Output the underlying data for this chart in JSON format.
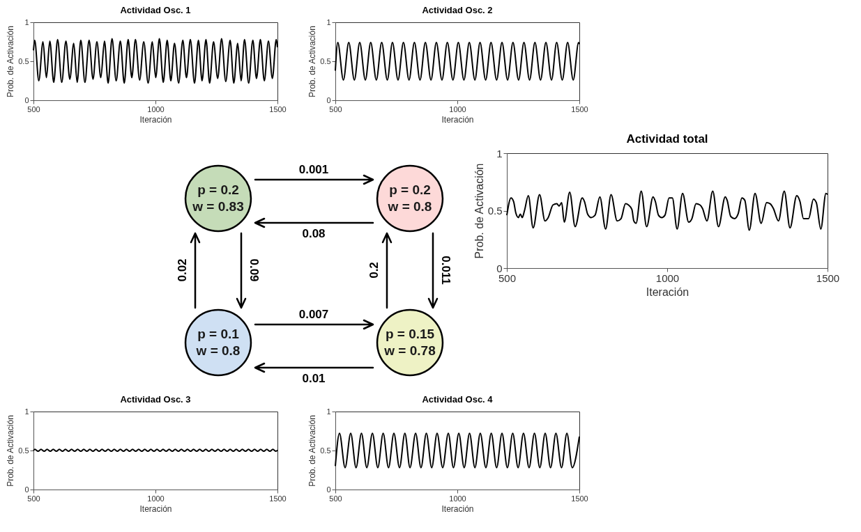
{
  "chart_data": [
    {
      "type": "line",
      "title": "Actividad Osc. 1",
      "xlabel": "Iteración",
      "ylabel": "Prob. de Activación",
      "xlim": [
        500,
        1500
      ],
      "ylim": [
        0,
        1
      ],
      "xticks": [
        500,
        1000,
        1500
      ],
      "yticks": [
        0,
        0.5,
        1
      ],
      "grid": false,
      "x": [
        500,
        505,
        522,
        539,
        553,
        567,
        583,
        599,
        616,
        633,
        649,
        665,
        679,
        694,
        711,
        728,
        744,
        760,
        776,
        791,
        806,
        822,
        839,
        856,
        872,
        888,
        903,
        918,
        935,
        952,
        970,
        987,
        1001,
        1016,
        1032,
        1048,
        1063,
        1078,
        1095,
        1112,
        1127,
        1143,
        1160,
        1176,
        1191,
        1207,
        1222,
        1238,
        1255,
        1271,
        1288,
        1306,
        1321,
        1337,
        1351,
        1365,
        1382,
        1399,
        1414,
        1430,
        1446,
        1463,
        1479,
        1495,
        1500
      ],
      "series": [
        {
          "color": "#000000",
          "values": [
            0.64,
            0.77,
            0.25,
            0.75,
            0.29,
            0.76,
            0.23,
            0.78,
            0.23,
            0.76,
            0.27,
            0.73,
            0.23,
            0.77,
            0.23,
            0.77,
            0.27,
            0.75,
            0.29,
            0.76,
            0.22,
            0.79,
            0.25,
            0.76,
            0.22,
            0.78,
            0.29,
            0.78,
            0.26,
            0.75,
            0.22,
            0.75,
            0.29,
            0.79,
            0.23,
            0.77,
            0.25,
            0.73,
            0.22,
            0.77,
            0.29,
            0.78,
            0.22,
            0.77,
            0.25,
            0.78,
            0.22,
            0.75,
            0.28,
            0.79,
            0.24,
            0.77,
            0.22,
            0.73,
            0.25,
            0.78,
            0.22,
            0.77,
            0.28,
            0.78,
            0.25,
            0.76,
            0.28,
            0.78,
            0.68
          ]
        }
      ]
    },
    {
      "type": "line",
      "title": "Actividad Osc. 2",
      "xlabel": "Iteración",
      "ylabel": "Prob. de Activación",
      "xlim": [
        500,
        1500
      ],
      "ylim": [
        0,
        1
      ],
      "xticks": [
        500,
        1000,
        1500
      ],
      "yticks": [
        0,
        0.5,
        1
      ],
      "grid": false,
      "x": [
        500,
        510,
        533,
        555,
        578,
        600,
        623,
        645,
        668,
        690,
        713,
        734,
        757,
        779,
        802,
        824,
        847,
        869,
        892,
        914,
        937,
        959,
        982,
        1004,
        1027,
        1049,
        1072,
        1093,
        1116,
        1138,
        1161,
        1183,
        1206,
        1228,
        1251,
        1273,
        1296,
        1318,
        1341,
        1363,
        1386,
        1407,
        1430,
        1452,
        1475,
        1497,
        1500
      ],
      "series": [
        {
          "color": "#000000",
          "values": [
            0.38,
            0.74,
            0.26,
            0.74,
            0.26,
            0.74,
            0.26,
            0.74,
            0.26,
            0.74,
            0.26,
            0.74,
            0.26,
            0.74,
            0.26,
            0.74,
            0.26,
            0.74,
            0.26,
            0.74,
            0.26,
            0.74,
            0.26,
            0.74,
            0.26,
            0.74,
            0.26,
            0.74,
            0.26,
            0.74,
            0.26,
            0.74,
            0.26,
            0.74,
            0.26,
            0.74,
            0.26,
            0.74,
            0.26,
            0.74,
            0.26,
            0.74,
            0.26,
            0.74,
            0.26,
            0.74,
            0.72
          ]
        }
      ]
    },
    {
      "type": "other",
      "categories": [
        "p = 0.2\nw = 0.83",
        "p = 0.2\nw = 0.8",
        "p = 0.1\nw = 0.8",
        "p = 0.15\nw = 0.78"
      ],
      "colors": [
        "#c5dcb8",
        "#fdd9d8",
        "#cfe0f3",
        "#eef2c5"
      ],
      "annotations": [
        "0.001",
        "0.08",
        "0.02",
        "0.09",
        "0.2",
        "0.011",
        "0.007",
        "0.01"
      ]
    },
    {
      "type": "line",
      "title": "Actividad total",
      "xlabel": "Iteración",
      "ylabel": "Prob. de Activación",
      "xlim": [
        500,
        1500
      ],
      "ylim": [
        0,
        1
      ],
      "xticks": [
        500,
        1000,
        1500
      ],
      "yticks": [
        0,
        0.5,
        1
      ],
      "grid": false,
      "x": [
        500,
        513,
        521,
        528,
        536,
        542,
        548,
        555,
        567,
        582,
        602,
        619,
        629,
        644,
        656,
        663,
        671,
        679,
        696,
        713,
        735,
        742,
        752,
        763,
        775,
        790,
        808,
        825,
        844,
        856,
        870,
        879,
        890,
        896,
        903,
        919,
        936,
        956,
        963,
        973,
        983,
        993,
        1006,
        1016,
        1031,
        1048,
        1067,
        1077,
        1090,
        1102,
        1110,
        1124,
        1142,
        1160,
        1181,
        1187,
        1198,
        1210,
        1221,
        1233,
        1242,
        1256,
        1274,
        1293,
        1310,
        1321,
        1331,
        1347,
        1365,
        1383,
        1404,
        1414,
        1425,
        1441,
        1456,
        1465,
        1479,
        1495,
        1500
      ],
      "series": [
        {
          "color": "#000000",
          "values": [
            0.46,
            0.61,
            0.58,
            0.48,
            0.44,
            0.47,
            0.44,
            0.5,
            0.63,
            0.35,
            0.64,
            0.41,
            0.44,
            0.55,
            0.56,
            0.54,
            0.57,
            0.4,
            0.66,
            0.36,
            0.61,
            0.58,
            0.47,
            0.44,
            0.46,
            0.62,
            0.34,
            0.64,
            0.41,
            0.43,
            0.56,
            0.55,
            0.51,
            0.41,
            0.39,
            0.67,
            0.36,
            0.62,
            0.58,
            0.46,
            0.44,
            0.46,
            0.61,
            0.61,
            0.34,
            0.65,
            0.4,
            0.43,
            0.56,
            0.55,
            0.52,
            0.41,
            0.67,
            0.36,
            0.62,
            0.59,
            0.45,
            0.43,
            0.47,
            0.61,
            0.59,
            0.33,
            0.65,
            0.39,
            0.57,
            0.56,
            0.52,
            0.41,
            0.67,
            0.35,
            0.63,
            0.58,
            0.43,
            0.43,
            0.6,
            0.57,
            0.34,
            0.65,
            0.64
          ]
        }
      ]
    },
    {
      "type": "line",
      "title": "Actividad Osc. 3",
      "xlabel": "Iteración",
      "ylabel": "Prob. de Activación",
      "xlim": [
        500,
        1500
      ],
      "ylim": [
        0,
        1
      ],
      "xticks": [
        500,
        1000,
        1500
      ],
      "yticks": [
        0,
        0.5,
        1
      ],
      "grid": false,
      "x": [
        500,
        506,
        519,
        531,
        544,
        556,
        569,
        581,
        594,
        606,
        619,
        631,
        644,
        656,
        669,
        681,
        694,
        706,
        719,
        731,
        744,
        756,
        769,
        781,
        794,
        806,
        819,
        831,
        844,
        856,
        869,
        881,
        894,
        906,
        919,
        931,
        944,
        956,
        969,
        981,
        994,
        1006,
        1019,
        1031,
        1044,
        1056,
        1069,
        1081,
        1094,
        1106,
        1119,
        1131,
        1144,
        1156,
        1169,
        1181,
        1194,
        1206,
        1219,
        1231,
        1244,
        1256,
        1269,
        1281,
        1294,
        1306,
        1319,
        1331,
        1344,
        1356,
        1369,
        1381,
        1394,
        1406,
        1419,
        1431,
        1444,
        1456,
        1469,
        1481,
        1494,
        1500
      ],
      "series": [
        {
          "color": "#000000",
          "values": [
            0.5,
            0.515,
            0.49,
            0.515,
            0.49,
            0.515,
            0.49,
            0.515,
            0.49,
            0.515,
            0.49,
            0.515,
            0.49,
            0.515,
            0.49,
            0.515,
            0.49,
            0.515,
            0.49,
            0.515,
            0.49,
            0.515,
            0.49,
            0.515,
            0.49,
            0.515,
            0.49,
            0.515,
            0.49,
            0.515,
            0.49,
            0.515,
            0.49,
            0.515,
            0.49,
            0.515,
            0.49,
            0.515,
            0.49,
            0.515,
            0.49,
            0.515,
            0.49,
            0.515,
            0.49,
            0.515,
            0.49,
            0.515,
            0.49,
            0.515,
            0.49,
            0.515,
            0.49,
            0.515,
            0.49,
            0.515,
            0.49,
            0.515,
            0.49,
            0.515,
            0.49,
            0.515,
            0.49,
            0.515,
            0.49,
            0.515,
            0.49,
            0.515,
            0.49,
            0.515,
            0.49,
            0.515,
            0.49,
            0.515,
            0.49,
            0.515,
            0.49,
            0.515,
            0.49,
            0.515,
            0.49,
            0.505
          ]
        }
      ]
    },
    {
      "type": "line",
      "title": "Actividad Osc. 4",
      "xlabel": "Iteración",
      "ylabel": "Prob. de Activación",
      "xlim": [
        500,
        1500
      ],
      "ylim": [
        0,
        1
      ],
      "xticks": [
        500,
        1000,
        1500
      ],
      "yticks": [
        0,
        0.5,
        1
      ],
      "grid": false,
      "x": [
        500,
        517,
        540,
        563,
        585,
        607,
        629,
        652,
        674,
        696,
        718,
        740,
        763,
        785,
        806,
        829,
        851,
        873,
        895,
        917,
        940,
        963,
        984,
        1006,
        1028,
        1050,
        1072,
        1094,
        1117,
        1139,
        1161,
        1183,
        1205,
        1227,
        1249,
        1271,
        1294,
        1316,
        1338,
        1360,
        1382,
        1404,
        1427,
        1449,
        1471,
        1500
      ],
      "series": [
        {
          "color": "#000000",
          "values": [
            0.3,
            0.72,
            0.28,
            0.72,
            0.28,
            0.72,
            0.28,
            0.72,
            0.28,
            0.72,
            0.28,
            0.72,
            0.28,
            0.72,
            0.28,
            0.72,
            0.28,
            0.72,
            0.28,
            0.72,
            0.28,
            0.72,
            0.28,
            0.72,
            0.28,
            0.72,
            0.28,
            0.72,
            0.28,
            0.72,
            0.28,
            0.72,
            0.28,
            0.72,
            0.28,
            0.72,
            0.28,
            0.72,
            0.28,
            0.72,
            0.28,
            0.72,
            0.28,
            0.72,
            0.28,
            0.68
          ]
        }
      ]
    }
  ]
}
